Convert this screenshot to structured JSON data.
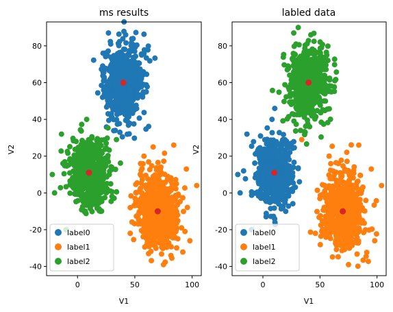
{
  "chart_data": [
    {
      "type": "scatter",
      "title": "ms results",
      "xlabel": "V1",
      "ylabel": "V2",
      "xlim": [
        -27,
        108
      ],
      "ylim": [
        -45,
        93
      ],
      "xticks": [
        "0",
        "50",
        "100"
      ],
      "yticks": [
        "-40",
        "-20",
        "0",
        "20",
        "40",
        "60",
        "80"
      ],
      "xtick_values": [
        0,
        50,
        100
      ],
      "ytick_values": [
        -40,
        -20,
        0,
        20,
        40,
        60,
        80
      ],
      "grid": false,
      "legend_position": "lower-left",
      "series": [
        {
          "name": "label0",
          "color": "#1f77b4",
          "center": [
            40,
            60
          ],
          "spread": [
            9,
            10
          ],
          "count": 650,
          "outliers": [
            [
              27,
              87
            ],
            [
              22,
              69
            ],
            [
              42,
              86
            ],
            [
              56,
              75
            ],
            [
              37,
              33
            ],
            [
              29,
              81
            ],
            [
              60,
              55
            ],
            [
              33,
              34
            ]
          ]
        },
        {
          "name": "label1",
          "color": "#ff7f0e",
          "center": [
            70,
            -10
          ],
          "spread": [
            9,
            10
          ],
          "count": 650,
          "outliers": [
            [
              84,
              26
            ],
            [
              104,
              4
            ],
            [
              98,
              -26
            ],
            [
              75,
              -39
            ],
            [
              46,
              -22
            ],
            [
              58,
              20
            ],
            [
              95,
              13
            ],
            [
              62,
              -33
            ]
          ]
        },
        {
          "name": "label2",
          "color": "#2ca02c",
          "center": [
            10,
            11
          ],
          "spread": [
            8,
            9
          ],
          "count": 650,
          "outliers": [
            [
              -14,
              32
            ],
            [
              -20,
              0
            ],
            [
              8,
              40
            ],
            [
              -10,
              -20
            ],
            [
              25,
              27
            ],
            [
              -22,
              10
            ],
            [
              34,
              29
            ],
            [
              20,
              -10
            ]
          ]
        }
      ],
      "centers": {
        "color": "#d62728",
        "points": [
          [
            40,
            60
          ],
          [
            70,
            -10
          ],
          [
            10,
            11
          ]
        ]
      }
    },
    {
      "type": "scatter",
      "title": "labled data",
      "xlabel": "V1",
      "ylabel": "V2",
      "xlim": [
        -27,
        108
      ],
      "ylim": [
        -45,
        93
      ],
      "xticks": [
        "0",
        "50",
        "100"
      ],
      "yticks": [
        "-40",
        "-20",
        "0",
        "20",
        "40",
        "60",
        "80"
      ],
      "xtick_values": [
        0,
        50,
        100
      ],
      "ytick_values": [
        -40,
        -20,
        0,
        20,
        40,
        60,
        80
      ],
      "grid": false,
      "legend_position": "lower-left",
      "series": [
        {
          "name": "label0",
          "color": "#1f77b4",
          "center": [
            10,
            11
          ],
          "spread": [
            8,
            9
          ],
          "count": 650,
          "outliers": [
            [
              -14,
              32
            ],
            [
              -20,
              0
            ],
            [
              8,
              40
            ],
            [
              -10,
              -20
            ],
            [
              25,
              27
            ],
            [
              -22,
              10
            ],
            [
              20,
              -10
            ]
          ]
        },
        {
          "name": "label1",
          "color": "#ff7f0e",
          "center": [
            70,
            -10
          ],
          "spread": [
            9,
            10
          ],
          "count": 650,
          "outliers": [
            [
              84,
              26
            ],
            [
              104,
              4
            ],
            [
              98,
              -26
            ],
            [
              75,
              -39
            ],
            [
              46,
              -22
            ],
            [
              58,
              20
            ],
            [
              95,
              13
            ],
            [
              34,
              29
            ]
          ]
        },
        {
          "name": "label2",
          "color": "#2ca02c",
          "center": [
            40,
            60
          ],
          "spread": [
            9,
            10
          ],
          "count": 650,
          "outliers": [
            [
              27,
              87
            ],
            [
              22,
              69
            ],
            [
              42,
              86
            ],
            [
              56,
              75
            ],
            [
              37,
              33
            ],
            [
              29,
              81
            ],
            [
              60,
              55
            ],
            [
              33,
              34
            ]
          ]
        }
      ],
      "centers": {
        "color": "#d62728",
        "points": [
          [
            40,
            60
          ],
          [
            70,
            -10
          ],
          [
            10,
            11
          ]
        ]
      }
    }
  ]
}
